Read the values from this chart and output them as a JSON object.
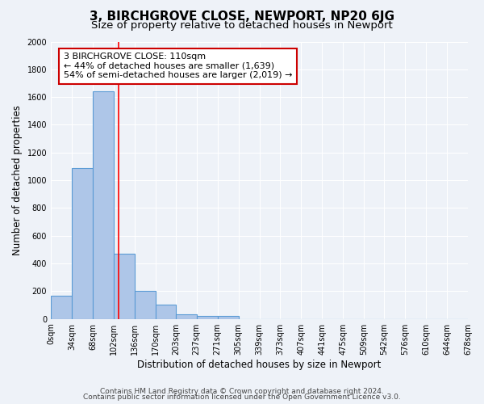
{
  "title": "3, BIRCHGROVE CLOSE, NEWPORT, NP20 6JG",
  "subtitle": "Size of property relative to detached houses in Newport",
  "xlabel": "Distribution of detached houses by size in Newport",
  "ylabel": "Number of detached properties",
  "bar_values": [
    170,
    1090,
    1640,
    470,
    200,
    105,
    35,
    20,
    20,
    0,
    0,
    0,
    0,
    0,
    0,
    0,
    0,
    0,
    0,
    0
  ],
  "bin_edges": [
    0,
    34,
    68,
    102,
    136,
    170,
    203,
    237,
    271,
    305,
    339,
    373,
    407,
    441,
    475,
    509,
    542,
    576,
    610,
    644,
    678
  ],
  "tick_labels": [
    "0sqm",
    "34sqm",
    "68sqm",
    "102sqm",
    "136sqm",
    "170sqm",
    "203sqm",
    "237sqm",
    "271sqm",
    "305sqm",
    "339sqm",
    "373sqm",
    "407sqm",
    "441sqm",
    "475sqm",
    "509sqm",
    "542sqm",
    "576sqm",
    "610sqm",
    "644sqm",
    "678sqm"
  ],
  "bar_color": "#aec6e8",
  "bar_edge_color": "#5b9bd5",
  "bar_edge_width": 0.8,
  "red_line_x": 110,
  "ylim": [
    0,
    2000
  ],
  "yticks": [
    0,
    200,
    400,
    600,
    800,
    1000,
    1200,
    1400,
    1600,
    1800,
    2000
  ],
  "annotation_title": "3 BIRCHGROVE CLOSE: 110sqm",
  "annotation_line1": "← 44% of detached houses are smaller (1,639)",
  "annotation_line2": "54% of semi-detached houses are larger (2,019) →",
  "footer_line1": "Contains HM Land Registry data © Crown copyright and database right 2024.",
  "footer_line2": "Contains public sector information licensed under the Open Government Licence v3.0.",
  "background_color": "#eef2f8",
  "grid_color": "#ffffff",
  "title_fontsize": 11,
  "subtitle_fontsize": 9.5,
  "axis_label_fontsize": 8.5,
  "tick_fontsize": 7,
  "annotation_fontsize": 8,
  "footer_fontsize": 6.5
}
